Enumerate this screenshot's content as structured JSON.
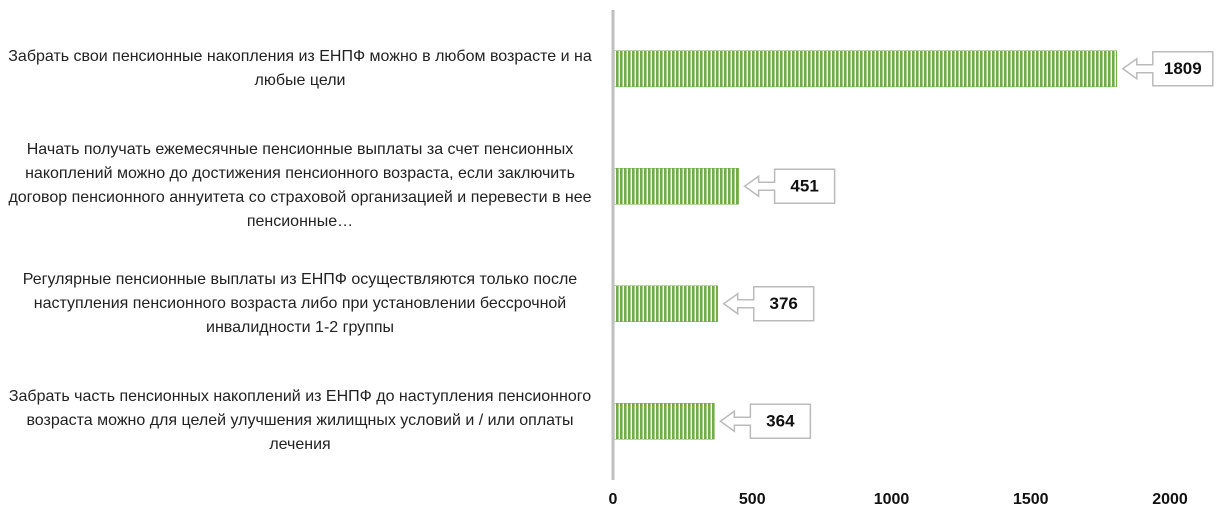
{
  "chart_data": {
    "type": "bar",
    "orientation": "horizontal",
    "categories": [
      "Забрать свои пенсионные накопления из ЕНПФ можно в любом возрасте и на любые цели",
      "Начать получать ежемесячные пенсионные выплаты за счет пенсионных накоплений можно до достижения пенсионного возраста, если заключить договор пенсионного аннуитета со страховой организацией и перевести в нее пенсионные…",
      "Регулярные пенсионные выплаты из ЕНПФ осуществляются только после наступления пенсионного возраста либо при установлении бессрочной инвалидности 1-2 группы",
      "Забрать часть пенсионных накоплений из ЕНПФ до наступления пенсионного возраста можно для целей улучшения жилищных условий и / или оплаты лечения"
    ],
    "values": [
      1809,
      451,
      376,
      364
    ],
    "color": "#70ad47",
    "xlim": [
      0,
      2000
    ],
    "xticks": [
      0,
      500,
      1000,
      1500,
      2000
    ]
  }
}
